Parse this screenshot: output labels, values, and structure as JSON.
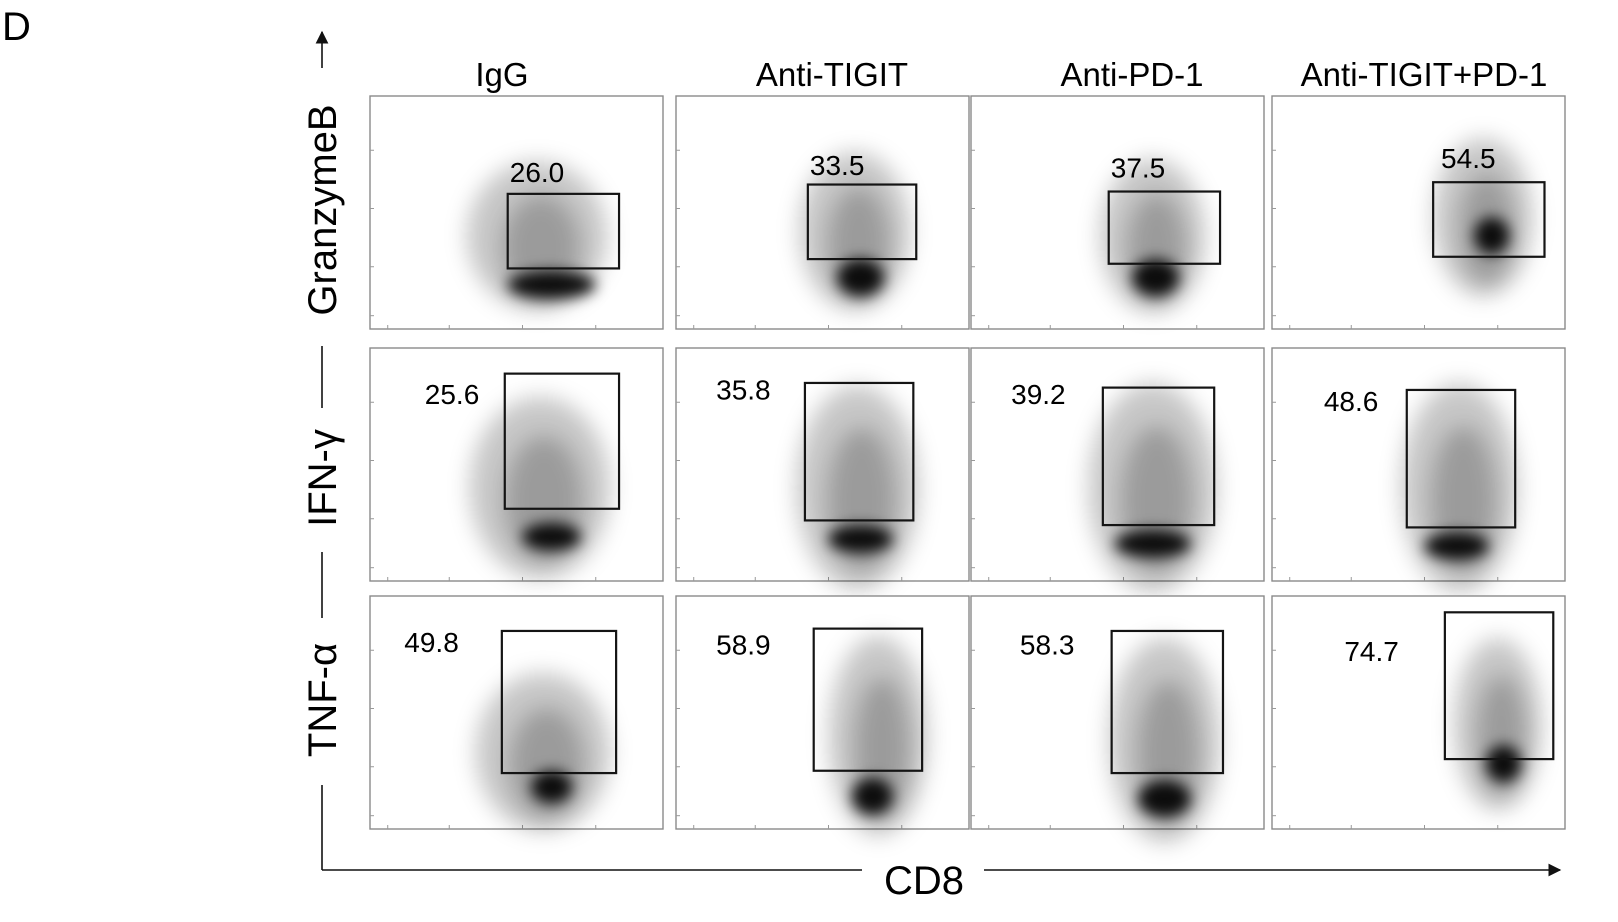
{
  "figure": {
    "panel_letter": "D",
    "x_axis_title": "CD8",
    "row_axis_titles": [
      "GranzymeB",
      "IFN-γ",
      "TNF-α"
    ],
    "column_titles": [
      "IgG",
      "Anti-TIGIT",
      "Anti-PD-1",
      "Anti-TIGIT+PD-1"
    ]
  },
  "colors": {
    "frame": "#8a8a8a",
    "gate": "#141414",
    "density": "#000000",
    "background": "#ffffff"
  },
  "chart_data": {
    "type": "heatmap",
    "subtype": "flow-cytometry density plots with gates",
    "x_axis": "CD8",
    "rows": [
      "GranzymeB",
      "IFN-γ",
      "TNF-α"
    ],
    "columns": [
      "IgG",
      "Anti-TIGIT",
      "Anti-PD-1",
      "Anti-TIGIT+PD-1"
    ],
    "gate_percentages": [
      [
        "26.0",
        "33.5",
        "37.5",
        "54.5"
      ],
      [
        "25.6",
        "35.8",
        "39.2",
        "48.6"
      ],
      [
        "49.8",
        "58.9",
        "58.3",
        "74.7"
      ]
    ]
  }
}
